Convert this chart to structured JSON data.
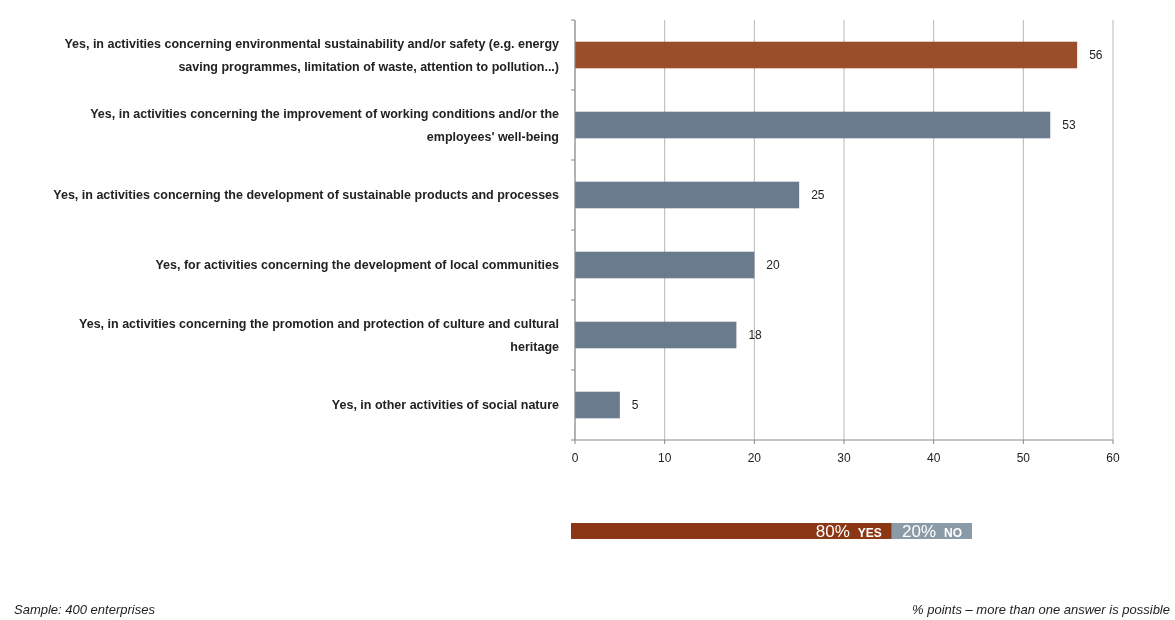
{
  "chart_data": [
    {
      "type": "bar",
      "orientation": "horizontal",
      "categories": [
        "Yes, in activities concerning environmental sustainability and/or safety (e.g. energy saving programmes, limitation of waste, attention to pollution...)",
        "Yes, in activities concerning the improvement of working conditions and/or the employees' well-being",
        "Yes, in activities concerning the development of sustainable products and processes",
        "Yes, for activities concerning the development of local communities",
        "Yes, in activities concerning the promotion and protection of culture and cultural heritage",
        "Yes, in other activities of social nature"
      ],
      "values": [
        56,
        53,
        25,
        20,
        18,
        5
      ],
      "colors": [
        "#9a4f2a",
        "#6b7b8e",
        "#6b7b8e",
        "#6b7b8e",
        "#6b7b8e",
        "#6b7b8e"
      ],
      "xlim": [
        0,
        60
      ],
      "xticks": [
        0,
        10,
        20,
        30,
        40,
        50,
        60
      ],
      "grid": "x",
      "data_labels": true,
      "annotations": [
        "Sample: 400 enterprises",
        "% points – more than one answer is possible"
      ]
    },
    {
      "type": "bar",
      "orientation": "horizontal",
      "stacked": true,
      "categories": [
        null
      ],
      "xlim": [
        0,
        100
      ],
      "series": [
        {
          "name": "YES",
          "color": "#8b3714",
          "values": [
            80
          ],
          "value_labels": [
            "80%"
          ]
        },
        {
          "name": "NO",
          "color": "#8a9aa6",
          "values": [
            20
          ],
          "value_labels": [
            "20%"
          ]
        }
      ]
    }
  ]
}
